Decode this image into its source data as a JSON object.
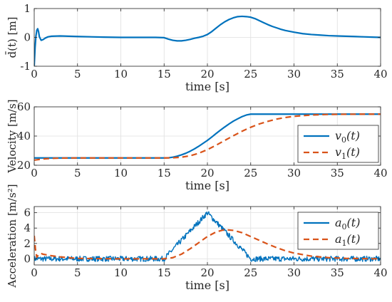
{
  "chart_data": [
    {
      "type": "line",
      "ylabel": "d̄(t) [m]",
      "xlabel": "time [s]",
      "xlim": [
        0,
        40
      ],
      "ylim": [
        -1,
        1
      ],
      "xticks": [
        "0",
        "5",
        "10",
        "15",
        "20",
        "25",
        "30",
        "35",
        "40"
      ],
      "yticks": [
        "-1",
        "0",
        "1"
      ],
      "grid": true,
      "legend": "none",
      "series": [
        {
          "color": "#0072bd",
          "style": "solid",
          "x": [
            0,
            0.1,
            0.2,
            0.3,
            0.4,
            0.5,
            0.6,
            0.8,
            1.0,
            1.3,
            1.6,
            2,
            3,
            5,
            8,
            10,
            12,
            14,
            15,
            15.5,
            16,
            16.5,
            17,
            17.5,
            18,
            18.5,
            19,
            19.5,
            20,
            20.5,
            21,
            21.5,
            22,
            22.5,
            23,
            23.5,
            24,
            24.5,
            25,
            25.5,
            26,
            26.5,
            27,
            27.5,
            28,
            28.5,
            29,
            30,
            31,
            32,
            33,
            34,
            35,
            36,
            37,
            38,
            39,
            40
          ],
          "y": [
            -0.98,
            -0.35,
            0.05,
            0.25,
            0.3,
            0.2,
            0.02,
            -0.1,
            -0.08,
            -0.02,
            0.02,
            0.04,
            0.05,
            0.03,
            0.01,
            0.0,
            0.0,
            0.0,
            -0.01,
            -0.06,
            -0.1,
            -0.12,
            -0.12,
            -0.1,
            -0.07,
            -0.03,
            0.0,
            0.04,
            0.1,
            0.2,
            0.32,
            0.44,
            0.54,
            0.62,
            0.68,
            0.72,
            0.73,
            0.72,
            0.7,
            0.65,
            0.58,
            0.51,
            0.44,
            0.38,
            0.33,
            0.28,
            0.24,
            0.18,
            0.13,
            0.1,
            0.08,
            0.06,
            0.05,
            0.04,
            0.03,
            0.02,
            0.01,
            0.0
          ]
        }
      ]
    },
    {
      "type": "line",
      "ylabel": "Velocity [m/s]",
      "xlabel": "time [s]",
      "xlim": [
        0,
        40
      ],
      "ylim": [
        20,
        60
      ],
      "xticks": [
        "0",
        "5",
        "10",
        "15",
        "20",
        "25",
        "30",
        "35",
        "40"
      ],
      "yticks": [
        "20",
        "40",
        "60"
      ],
      "grid": true,
      "legend": "bottom-right",
      "series": [
        {
          "name": "v0(t)",
          "legend_base": "v",
          "legend_sub": "0",
          "legend_arg": "(t)",
          "color": "#0072bd",
          "style": "solid",
          "x": [
            0,
            5,
            10,
            15,
            15.5,
            16,
            16.5,
            17,
            17.5,
            18,
            18.5,
            19,
            19.5,
            20,
            20.5,
            21,
            21.5,
            22,
            22.5,
            23,
            23.5,
            24,
            24.5,
            25,
            30,
            35,
            40
          ],
          "y": [
            25,
            25,
            25,
            25,
            25.1,
            25.5,
            26.2,
            27.1,
            28.2,
            29.6,
            31.2,
            33.0,
            35.0,
            37.0,
            39.3,
            41.7,
            44.0,
            46.2,
            48.3,
            50.2,
            51.8,
            53.3,
            54.4,
            55,
            55,
            55,
            55
          ]
        },
        {
          "name": "v1(t)",
          "legend_base": "v",
          "legend_sub": "1",
          "legend_arg": "(t)",
          "color": "#d95319",
          "style": "dashed",
          "x": [
            0,
            1,
            2,
            3,
            5,
            10,
            15,
            16,
            17,
            18,
            19,
            20,
            21,
            22,
            23,
            24,
            25,
            26,
            27,
            28,
            29,
            30,
            32,
            34,
            36,
            38,
            40
          ],
          "y": [
            23.5,
            24.3,
            24.7,
            24.9,
            25,
            25,
            25,
            25.1,
            25.5,
            26.5,
            28.2,
            30.7,
            33.7,
            37.0,
            40.2,
            43.3,
            46.0,
            48.3,
            50.1,
            51.6,
            52.7,
            53.5,
            54.4,
            54.8,
            54.95,
            55,
            55
          ]
        }
      ]
    },
    {
      "type": "line",
      "ylabel": "Acceleration [m/s²]",
      "xlabel": "time [s]",
      "xlim": [
        0,
        40
      ],
      "ylim": [
        -0.8,
        6.8
      ],
      "xticks": [
        "0",
        "5",
        "10",
        "15",
        "20",
        "25",
        "30",
        "35",
        "40"
      ],
      "yticks": [
        "0",
        "2",
        "4",
        "6"
      ],
      "grid": true,
      "legend": "top-right",
      "series": [
        {
          "name": "a0(t)",
          "legend_base": "a",
          "legend_sub": "0",
          "legend_arg": "(t)",
          "color": "#0072bd",
          "style": "solid",
          "noise_amplitude": 0.35,
          "x": [
            0,
            15,
            20,
            25,
            40
          ],
          "y": [
            0,
            0,
            6.0,
            0,
            0
          ]
        },
        {
          "name": "a1(t)",
          "legend_base": "a",
          "legend_sub": "1",
          "legend_arg": "(t)",
          "color": "#d95319",
          "style": "dashed",
          "x": [
            0,
            0.15,
            0.3,
            0.5,
            0.8,
            1.0,
            1.5,
            2,
            3,
            5,
            10,
            15,
            16,
            17,
            18,
            19,
            20,
            21,
            22,
            23,
            24,
            25,
            26,
            27,
            28,
            29,
            30,
            32,
            34,
            36,
            38,
            40
          ],
          "y": [
            3.0,
            1.2,
            0.2,
            0.55,
            0.7,
            0.6,
            0.5,
            0.4,
            0.25,
            0.05,
            0.0,
            0.0,
            0.15,
            0.6,
            1.3,
            2.1,
            2.9,
            3.5,
            3.8,
            3.7,
            3.4,
            2.9,
            2.4,
            1.9,
            1.45,
            1.05,
            0.75,
            0.35,
            0.15,
            0.06,
            0.02,
            0.0
          ]
        }
      ]
    }
  ]
}
